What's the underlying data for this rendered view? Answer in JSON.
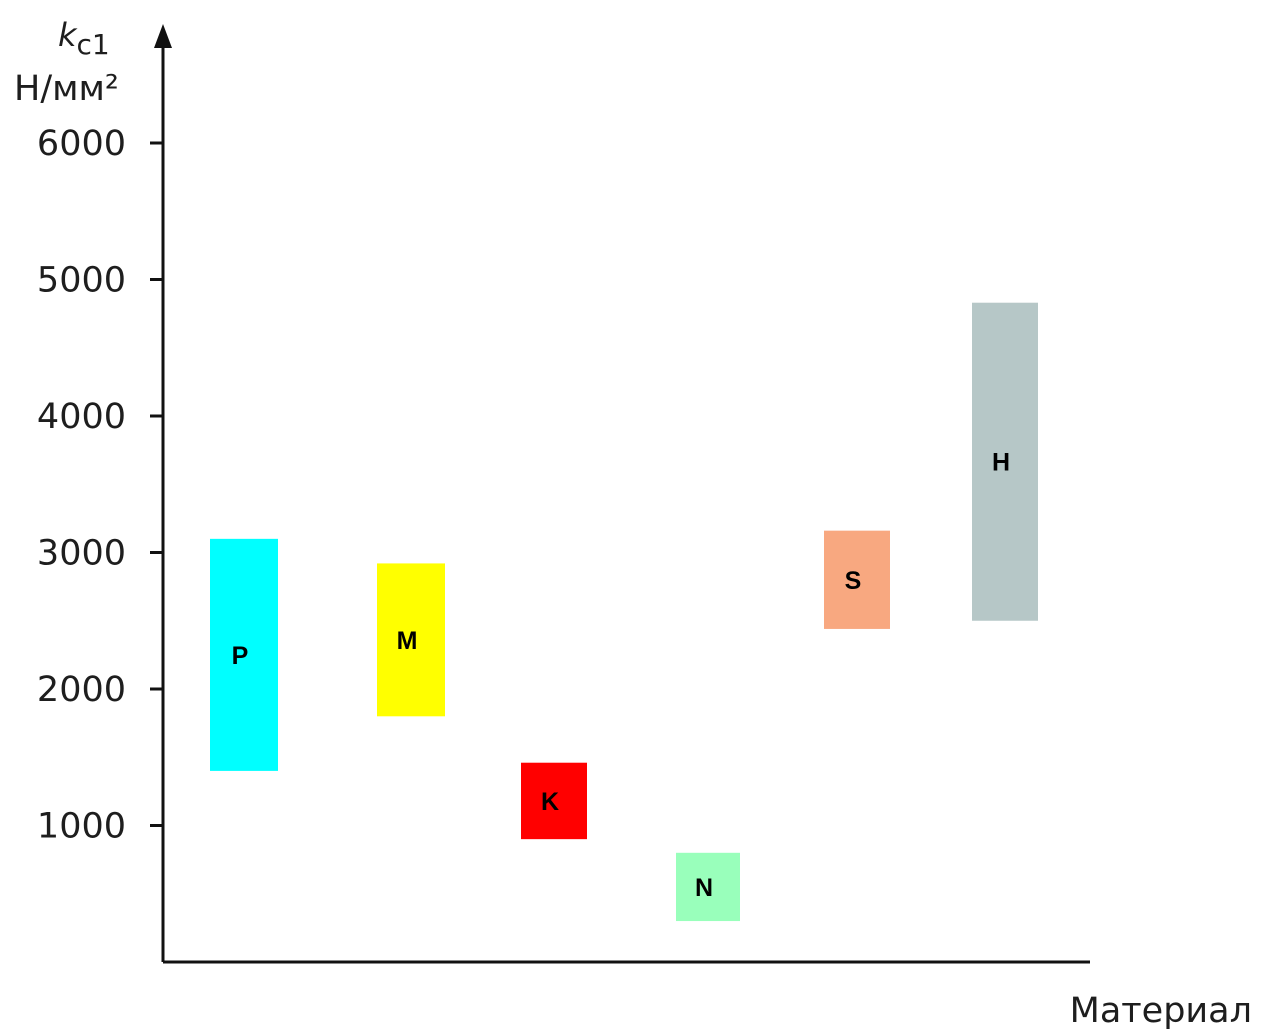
{
  "chart_data": {
    "type": "bar",
    "subtype": "floating-range",
    "ylabel": {
      "symbol": "k",
      "subscript": "c1",
      "unit": "Н/мм²"
    },
    "xlabel": "Материал",
    "ylim": [
      0,
      6000
    ],
    "yticks": [
      "1000",
      "2000",
      "3000",
      "4000",
      "5000",
      "6000"
    ],
    "ytick_values": [
      1000,
      2000,
      3000,
      4000,
      5000,
      6000
    ],
    "grid": false,
    "legend": "none",
    "categories": [
      "P",
      "M",
      "K",
      "N",
      "S",
      "H"
    ],
    "ranges": [
      {
        "label": "P",
        "low": 1400,
        "high": 3100,
        "color": "#00ffff"
      },
      {
        "label": "M",
        "low": 1800,
        "high": 2920,
        "color": "#ffff00"
      },
      {
        "label": "K",
        "low": 900,
        "high": 1460,
        "color": "#ff0000"
      },
      {
        "label": "N",
        "low": 300,
        "high": 800,
        "color": "#99ffbb"
      },
      {
        "label": "S",
        "low": 2440,
        "high": 3160,
        "color": "#f8a880"
      },
      {
        "label": "H",
        "low": 2500,
        "high": 4830,
        "color": "#b6c7c7"
      }
    ]
  }
}
